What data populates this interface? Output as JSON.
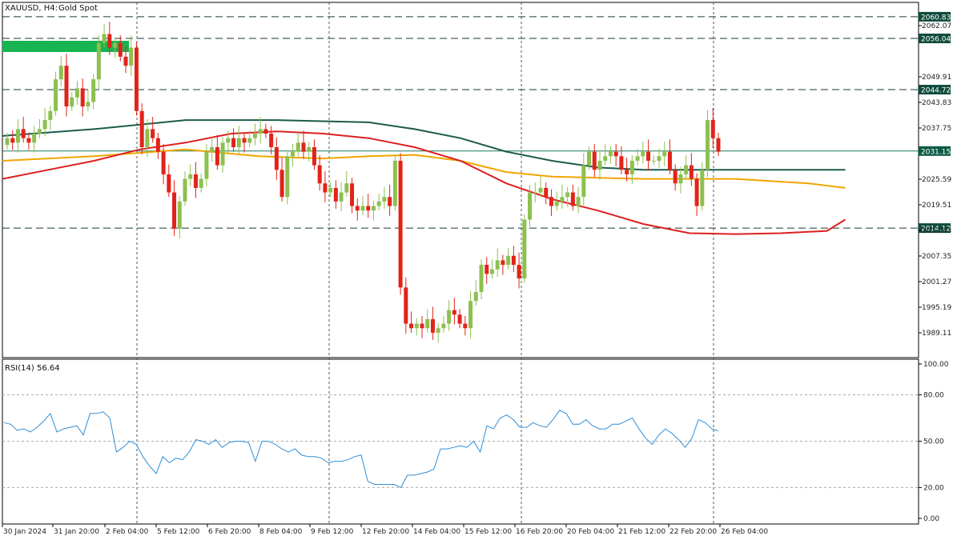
{
  "header": {
    "symbol": "XAUUSD, H4:",
    "description": "Gold Spot"
  },
  "colors": {
    "bull": "#8cc04f",
    "bear": "#e2231a",
    "ma_dark": "#1c5b4b",
    "ma_orange": "#f0a500",
    "ma_red": "#dd1f1f",
    "rsi": "#2f8ed6",
    "level_tag": "#0f4b3c",
    "current_tag": "#0b5a45",
    "zone": "#18b450",
    "grid": "#888888"
  },
  "price_axis": {
    "ticks": [
      "2062.07",
      "2049.91",
      "2043.83",
      "2037.75",
      "2025.59",
      "2019.51",
      "2013.43",
      "2007.35",
      "2001.27",
      "1995.19",
      "1989.11"
    ]
  },
  "levels": [
    {
      "value": 2060.83,
      "label": "2060.83"
    },
    {
      "value": 2056.04,
      "label": "2056.04"
    },
    {
      "value": 2044.72,
      "label": "2044.72"
    },
    {
      "value": 2014.12,
      "label": "2014.12"
    }
  ],
  "current_price": {
    "value": 2031.15,
    "label": "2031.15"
  },
  "time_axis": {
    "labels": [
      "30 Jan 2024",
      "31 Jan 20:00",
      "2 Feb 04:00",
      "5 Feb 12:00",
      "6 Feb 20:00",
      "8 Feb 04:00",
      "9 Feb 12:00",
      "12 Feb 20:00",
      "14 Feb 04:00",
      "15 Feb 12:00",
      "16 Feb 20:00",
      "20 Feb 04:00",
      "21 Feb 12:00",
      "22 Feb 20:00",
      "26 Feb 04:00"
    ]
  },
  "rsi": {
    "label": "RSI(14) 56.64",
    "ticks": [
      "100.00",
      "80.00",
      "50.00",
      "20.00",
      "0.00"
    ]
  },
  "chart_data": {
    "type": "candlestick",
    "title": "XAUUSD, H4: Gold Spot",
    "x_labels": [
      "30 Jan 2024",
      "31 Jan 20:00",
      "2 Feb 04:00",
      "5 Feb 12:00",
      "6 Feb 20:00",
      "8 Feb 04:00",
      "9 Feb 12:00",
      "12 Feb 20:00",
      "14 Feb 04:00",
      "15 Feb 12:00",
      "16 Feb 20:00",
      "20 Feb 04:00",
      "21 Feb 12:00",
      "22 Feb 20:00",
      "26 Feb 04:00"
    ],
    "ylim": [
      1985.5,
      2064.0
    ],
    "closes": [
      2034,
      2033,
      2036,
      2034,
      2033,
      2035,
      2036,
      2038,
      2040,
      2047,
      2050,
      2041,
      2043,
      2045,
      2041,
      2042,
      2047,
      2055,
      2057,
      2054,
      2055,
      2052,
      2050,
      2054,
      2040,
      2032,
      2036,
      2034,
      2031,
      2026,
      2022,
      2014,
      2020,
      2025,
      2026,
      2023,
      2025,
      2031,
      2032,
      2028,
      2033,
      2034,
      2032,
      2034,
      2033,
      2034,
      2035,
      2036,
      2035,
      2032,
      2027,
      2021,
      2030,
      2031,
      2033,
      2031,
      2032,
      2028,
      2024,
      2022,
      2023,
      2020,
      2022,
      2024,
      2019,
      2018,
      2019,
      2018,
      2019,
      2020,
      2021,
      2019,
      2029,
      2001,
      1993,
      1992,
      1993,
      1992,
      1994,
      1991,
      1992,
      1993,
      1996,
      1995,
      1993,
      1992,
      1998,
      2000,
      2006,
      2004,
      2005,
      2007,
      2006,
      2008,
      2006,
      2003,
      2016,
      2022,
      2022,
      2023,
      2021,
      2019,
      2020,
      2021,
      2022,
      2019,
      2021,
      2028,
      2031,
      2027,
      2029,
      2030,
      2031,
      2030,
      2027,
      2026,
      2029,
      2030,
      2031,
      2029,
      2029,
      2030,
      2031,
      2027,
      2024,
      2026,
      2028,
      2025,
      2019,
      2027,
      2038,
      2034,
      2031
    ],
    "rsi_values": [
      62,
      61,
      57,
      58,
      56,
      59,
      63,
      68,
      56,
      58,
      59,
      60,
      54,
      68,
      68,
      69,
      65,
      43,
      46,
      50,
      48,
      40,
      34,
      29,
      40,
      36,
      39,
      38,
      43,
      51,
      50,
      48,
      51,
      46,
      49,
      50,
      50,
      49,
      37,
      50,
      50,
      48,
      45,
      43,
      45,
      41,
      40,
      40,
      39,
      36,
      37,
      37,
      38,
      40,
      41,
      24,
      22,
      22,
      22,
      22,
      20,
      28,
      28,
      29,
      30,
      32,
      45,
      45,
      46,
      47,
      46,
      50,
      43,
      60,
      58,
      65,
      67,
      64,
      59,
      59,
      62,
      60,
      59,
      64,
      70,
      68,
      61,
      61,
      64,
      60,
      58,
      58,
      61,
      61,
      63,
      65,
      58,
      52,
      48,
      54,
      58,
      55,
      51,
      46,
      52,
      64,
      62,
      58,
      56.64
    ],
    "moving_averages": [
      {
        "color": "#1c5b4b",
        "points": [
          [
            0,
            2034.5
          ],
          [
            0.1,
            2036
          ],
          [
            0.2,
            2038
          ],
          [
            0.3,
            2038
          ],
          [
            0.4,
            2037.5
          ],
          [
            0.45,
            2036
          ],
          [
            0.5,
            2034
          ],
          [
            0.55,
            2031
          ],
          [
            0.6,
            2029
          ],
          [
            0.65,
            2027.5
          ],
          [
            0.7,
            2027
          ],
          [
            0.8,
            2027
          ],
          [
            0.92,
            2027
          ]
        ]
      },
      {
        "color": "#f0a500",
        "points": [
          [
            0,
            2029
          ],
          [
            0.1,
            2030
          ],
          [
            0.2,
            2031.5
          ],
          [
            0.28,
            2030
          ],
          [
            0.35,
            2029.5
          ],
          [
            0.4,
            2030
          ],
          [
            0.45,
            2030.3
          ],
          [
            0.5,
            2029
          ],
          [
            0.55,
            2026.5
          ],
          [
            0.6,
            2025.5
          ],
          [
            0.7,
            2025
          ],
          [
            0.8,
            2025
          ],
          [
            0.88,
            2024
          ],
          [
            0.92,
            2023
          ]
        ]
      },
      {
        "color": "#dd1f1f",
        "points": [
          [
            0,
            2025
          ],
          [
            0.05,
            2027
          ],
          [
            0.1,
            2029
          ],
          [
            0.15,
            2031.5
          ],
          [
            0.2,
            2033
          ],
          [
            0.25,
            2035
          ],
          [
            0.3,
            2035.5
          ],
          [
            0.35,
            2035
          ],
          [
            0.4,
            2034
          ],
          [
            0.45,
            2032
          ],
          [
            0.5,
            2029
          ],
          [
            0.55,
            2024
          ],
          [
            0.6,
            2020.5
          ],
          [
            0.65,
            2018
          ],
          [
            0.7,
            2015
          ],
          [
            0.75,
            2013
          ],
          [
            0.8,
            2012.8
          ],
          [
            0.85,
            2013
          ],
          [
            0.9,
            2013.5
          ],
          [
            0.92,
            2016
          ]
        ]
      }
    ]
  }
}
